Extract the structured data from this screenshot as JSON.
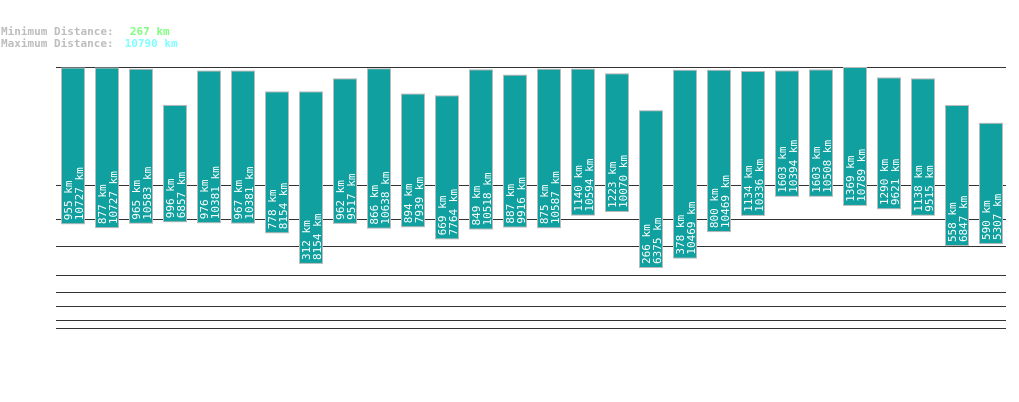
{
  "header": {
    "min_label": "Minimum Distance:",
    "min_value": "267 km",
    "max_label": "Maximum Distance:",
    "max_value": "10790 km",
    "min_color": "#80ff80",
    "max_color": "#80ffff"
  },
  "chart_data": {
    "type": "bar",
    "subtype": "range",
    "bar_color": "#10a0a0",
    "unit": "km",
    "series": [
      {
        "min": 955,
        "max": 10727
      },
      {
        "min": 877,
        "max": 10727
      },
      {
        "min": 965,
        "max": 10583
      },
      {
        "min": 996,
        "max": 6857
      },
      {
        "min": 976,
        "max": 10381
      },
      {
        "min": 967,
        "max": 10381
      },
      {
        "min": 778,
        "max": 8154
      },
      {
        "min": 312,
        "max": 8154
      },
      {
        "min": 962,
        "max": 9517
      },
      {
        "min": 866,
        "max": 10638
      },
      {
        "min": 894,
        "max": 7939
      },
      {
        "min": 669,
        "max": 7764
      },
      {
        "min": 849,
        "max": 10518
      },
      {
        "min": 887,
        "max": 9916
      },
      {
        "min": 875,
        "max": 10587
      },
      {
        "min": 1140,
        "max": 10594
      },
      {
        "min": 1223,
        "max": 10070
      },
      {
        "min": 266,
        "max": 6375
      },
      {
        "min": 378,
        "max": 10469
      },
      {
        "min": 800,
        "max": 10469
      },
      {
        "min": 1134,
        "max": 10336
      },
      {
        "min": 1603,
        "max": 10394
      },
      {
        "min": 1603,
        "max": 10508
      },
      {
        "min": 1369,
        "max": 10789
      },
      {
        "min": 1290,
        "max": 9621
      },
      {
        "min": 1138,
        "max": 9515
      },
      {
        "min": 558,
        "max": 6847
      },
      {
        "min": 590,
        "max": 5307
      }
    ],
    "grid": true
  }
}
